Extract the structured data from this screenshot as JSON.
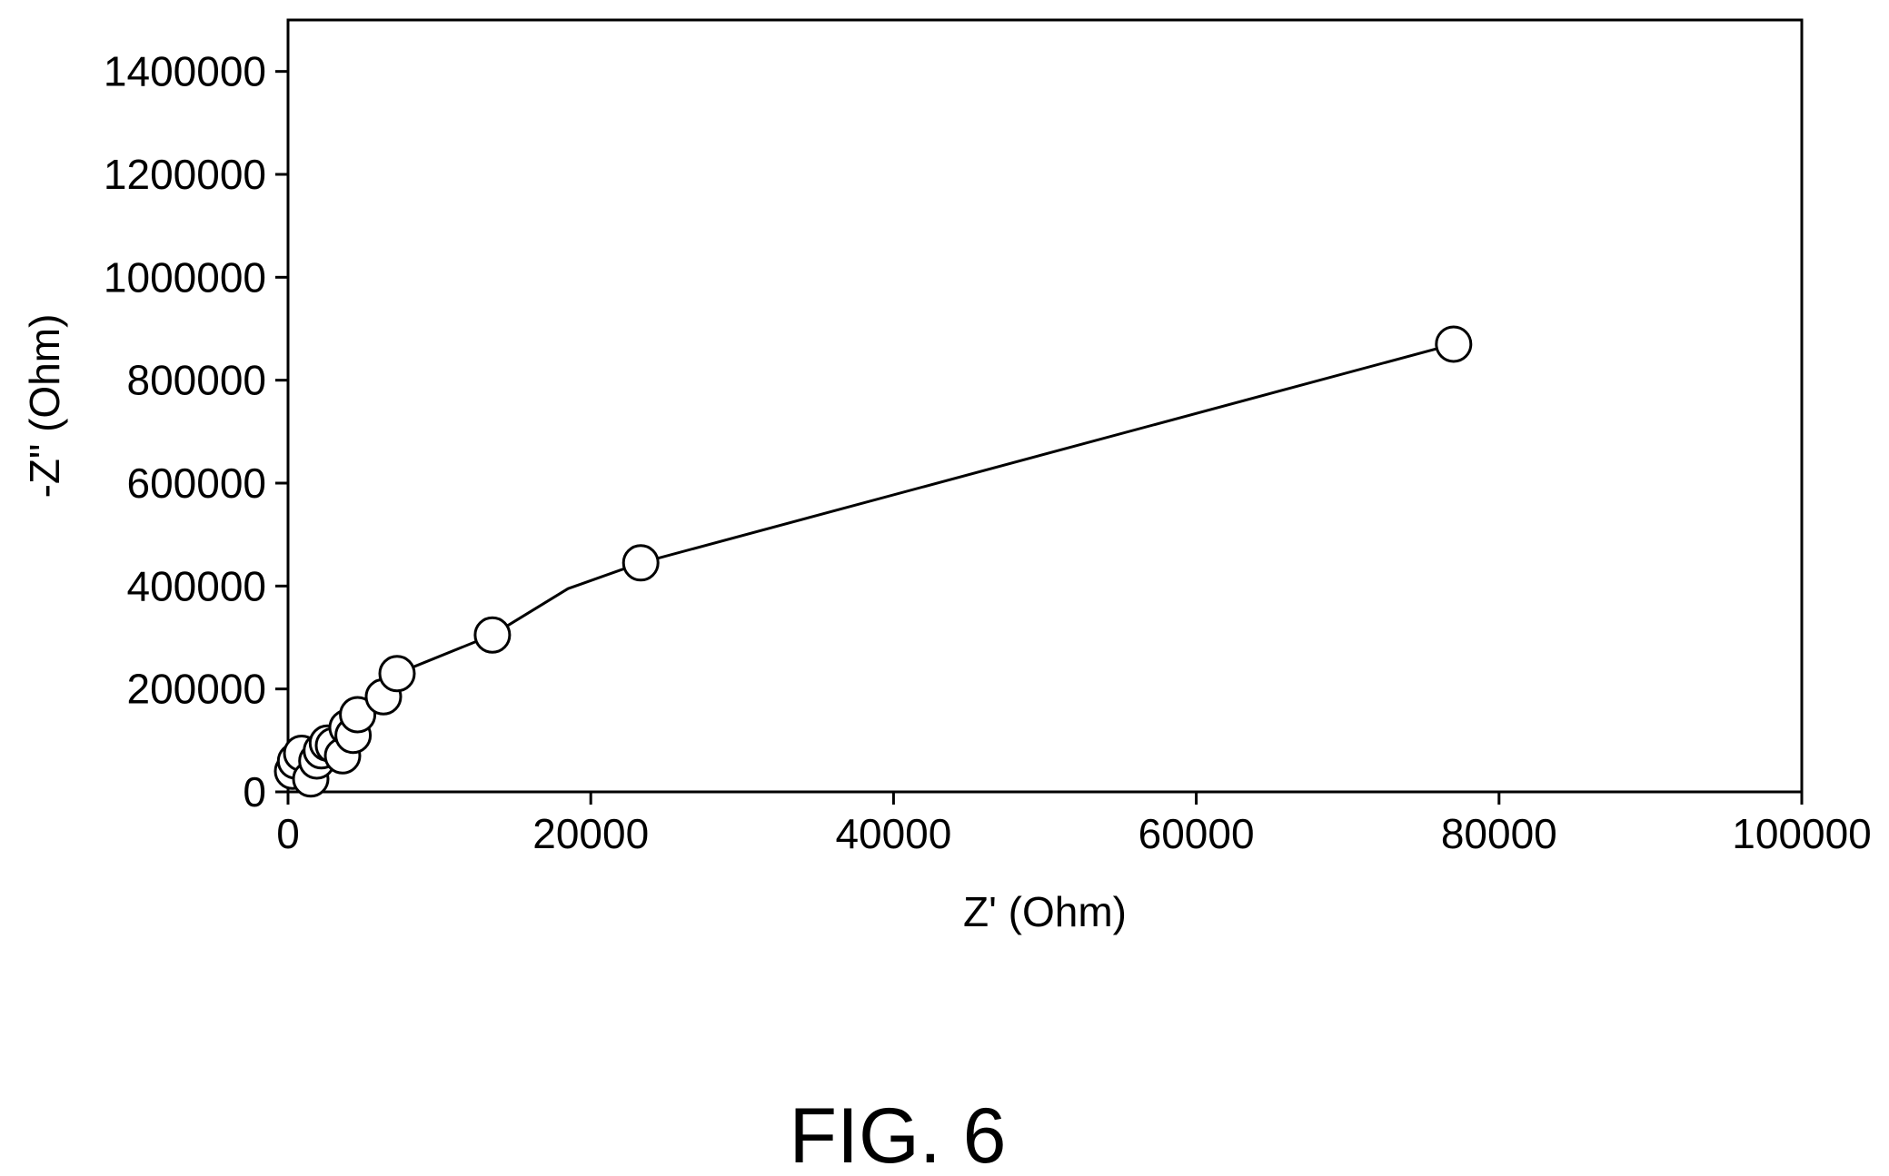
{
  "caption": "FIG. 6",
  "chart_data": {
    "type": "scatter",
    "title": "",
    "xlabel": "Z' (Ohm)",
    "ylabel": "-Z\" (Ohm)",
    "xlim": [
      0,
      100000
    ],
    "ylim": [
      0,
      1500000
    ],
    "xticks": [
      0,
      20000,
      40000,
      60000,
      80000,
      100000
    ],
    "yticks": [
      0,
      200000,
      400000,
      600000,
      800000,
      1000000,
      1200000,
      1400000
    ],
    "xtick_labels": [
      "0",
      "20000",
      "40000",
      "60000",
      "80000",
      "100000"
    ],
    "ytick_labels": [
      "0",
      "200000",
      "400000",
      "600000",
      "800000",
      "1000000",
      "1200000",
      "1400000"
    ],
    "grid": false,
    "legend": "none",
    "marker": "open-circle",
    "line_color": "#000000",
    "marker_fill": "#ffffff",
    "series": [
      {
        "x": [
          300,
          500,
          900,
          1500,
          1900,
          2200,
          2600,
          3000,
          3600,
          3900,
          4300,
          4600,
          6300,
          7200,
          13500,
          23300,
          77000
        ],
        "y": [
          40000,
          60000,
          75000,
          25000,
          60000,
          80000,
          95000,
          90000,
          70000,
          125000,
          110000,
          150000,
          185000,
          230000,
          305000,
          445000,
          870000
        ]
      }
    ],
    "line_path": {
      "x": [
        300,
        500,
        900,
        1500,
        2200,
        2600,
        3000,
        3900,
        4600,
        6300,
        7200,
        13500,
        18500,
        23300,
        77000
      ],
      "y": [
        40000,
        60000,
        75000,
        82000,
        88000,
        95000,
        100000,
        125000,
        150000,
        185000,
        230000,
        305000,
        395000,
        445000,
        870000
      ]
    }
  }
}
